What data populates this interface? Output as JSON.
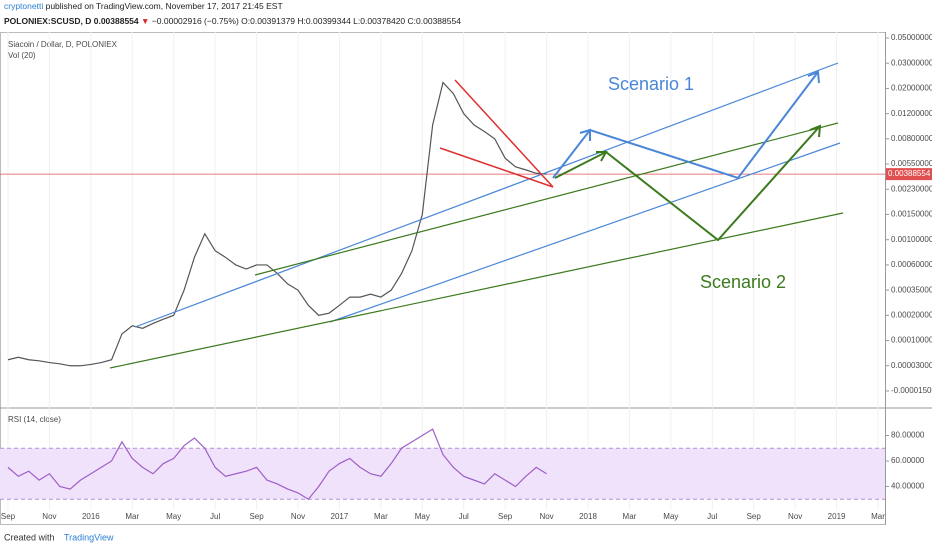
{
  "header": {
    "author": "cryptonetti",
    "published": "published on TradingView.com, November 17, 2017 21:45 EST",
    "quote": "POLONIEX:SCUSD, D 0.00388554",
    "change": "−0.00002916 (−0.75%)",
    "ohlc": "O:0.00391379 H:0.00399344 L:0.00378420 C:0.00388554"
  },
  "footer": {
    "created": "Created with",
    "brand": "TradingView"
  },
  "chart_data": [
    {
      "type": "line",
      "title": "Siacoin / Dollar, D, POLONIEX",
      "subtitle": "Vol (20)",
      "color": "#555555",
      "xticks": [
        "Sep",
        "Nov",
        "2016",
        "Mar",
        "May",
        "Jul",
        "Sep",
        "Nov",
        "2017",
        "Mar",
        "May",
        "Jul",
        "Sep",
        "Nov",
        "2018",
        "Mar",
        "May",
        "Jul",
        "Sep",
        "Nov",
        "2019",
        "Mar"
      ],
      "values": [
        4e-05,
        4.5e-05,
        4e-05,
        3.8e-05,
        3.5e-05,
        3.3e-05,
        3e-05,
        3e-05,
        3.2e-05,
        3.5e-05,
        4e-05,
        0.00012,
        0.00015,
        0.00014,
        0.00016,
        0.00018,
        0.0002,
        0.00035,
        0.0007,
        0.0011,
        0.0008,
        0.0007,
        0.0006,
        0.00055,
        0.0006,
        0.0006,
        0.0005,
        0.0004,
        0.00035,
        0.00025,
        0.0002,
        0.00021,
        0.00025,
        0.0003,
        0.0003,
        0.00032,
        0.0003,
        0.00035,
        0.0005,
        0.0008,
        0.0015,
        0.01,
        0.022,
        0.018,
        0.012,
        0.01,
        0.009,
        0.008,
        0.006,
        0.005,
        0.0045,
        0.004,
        0.00388554
      ],
      "yticks": [
        {
          "value": 0.05,
          "label": "0.05000000"
        },
        {
          "value": 0.03,
          "label": "0.03000000"
        },
        {
          "value": 0.02,
          "label": "0.02000000"
        },
        {
          "value": 0.012,
          "label": "0.01200000"
        },
        {
          "value": 0.008,
          "label": "0.00800000"
        },
        {
          "value": 0.0055,
          "label": "0.00550000"
        },
        {
          "value": 0.0023,
          "label": "0.00230000"
        },
        {
          "value": 0.0015,
          "label": "0.00150000"
        },
        {
          "value": 0.001,
          "label": "0.00100000"
        },
        {
          "value": 0.0006,
          "label": "0.00060000"
        },
        {
          "value": 0.00035,
          "label": "0.00035000"
        },
        {
          "value": 0.0002,
          "label": "0.00020000"
        },
        {
          "value": 0.0001,
          "label": "0.00010000"
        },
        {
          "value": 3e-05,
          "label": "0.00003000"
        },
        {
          "value": -1.5e-05,
          "label": "-0.00001500"
        }
      ],
      "last_price": {
        "value": 0.00388554,
        "label": "0.00388554"
      },
      "annotations": [
        "Scenario 1",
        "Scenario 2"
      ]
    },
    {
      "type": "line",
      "title": "RSI (14, close)",
      "color": "#9c5fc7",
      "ylim": [
        20,
        100
      ],
      "band": [
        30,
        70
      ],
      "values": [
        55,
        48,
        52,
        45,
        50,
        40,
        38,
        45,
        50,
        55,
        60,
        75,
        62,
        55,
        50,
        58,
        62,
        72,
        78,
        70,
        55,
        48,
        50,
        52,
        55,
        45,
        42,
        38,
        35,
        30,
        40,
        52,
        58,
        62,
        55,
        50,
        48,
        58,
        70,
        75,
        80,
        85,
        65,
        55,
        48,
        45,
        42,
        50,
        45,
        40,
        48,
        55,
        50
      ],
      "yticks": [
        {
          "value": 80,
          "label": "80.00000"
        },
        {
          "value": 60,
          "label": "60.00000"
        },
        {
          "value": 40,
          "label": "40.00000"
        }
      ]
    }
  ]
}
